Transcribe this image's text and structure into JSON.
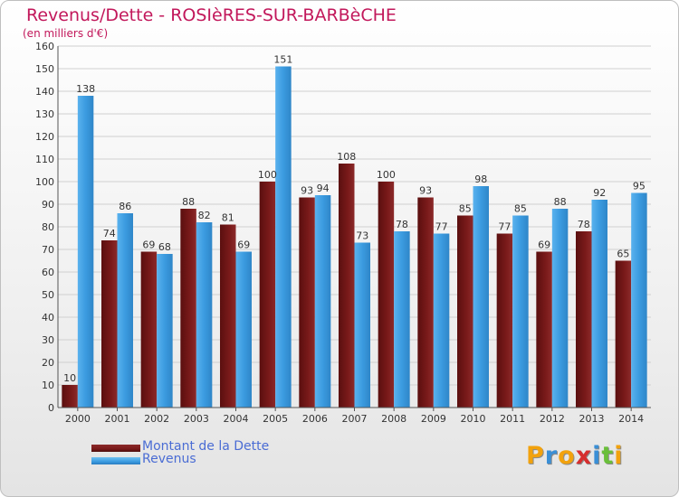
{
  "title": "Revenus/Dette - ROSIèRES-SUR-BARBèCHE",
  "subtitle": "(en milliers d'€)",
  "colors": {
    "debt": "#7a1a1a",
    "revenue": "#3b9be0",
    "title": "#c2185b",
    "legend_text": "#4a6cd4"
  },
  "legend": {
    "debt_label": "Montant de la Dette",
    "revenue_label": "Revenus"
  },
  "logo": {
    "letters": [
      {
        "char": "P",
        "color": "#f2a20d"
      },
      {
        "char": "r",
        "color": "#3a8fd6"
      },
      {
        "char": "o",
        "color": "#f2a20d"
      },
      {
        "char": "x",
        "color": "#d62e2e"
      },
      {
        "char": "i",
        "color": "#3a8fd6"
      },
      {
        "char": "t",
        "color": "#6abf3a"
      },
      {
        "char": "i",
        "color": "#f2a20d"
      }
    ]
  },
  "chart_data": {
    "type": "bar",
    "categories": [
      "2000",
      "2001",
      "2002",
      "2003",
      "2004",
      "2005",
      "2006",
      "2007",
      "2008",
      "2009",
      "2010",
      "2011",
      "2012",
      "2013",
      "2014"
    ],
    "series": [
      {
        "name": "Montant de la Dette",
        "values": [
          10,
          74,
          69,
          88,
          81,
          100,
          93,
          108,
          100,
          93,
          85,
          77,
          69,
          78,
          65
        ]
      },
      {
        "name": "Revenus",
        "values": [
          138,
          86,
          68,
          82,
          69,
          151,
          94,
          73,
          78,
          77,
          98,
          85,
          88,
          92,
          95
        ]
      }
    ],
    "ylim": [
      0,
      160
    ],
    "yticks": [
      0,
      10,
      20,
      30,
      40,
      50,
      60,
      70,
      80,
      90,
      100,
      110,
      120,
      130,
      140,
      150,
      160
    ],
    "grid": true,
    "legend_position": "bottom-left"
  }
}
